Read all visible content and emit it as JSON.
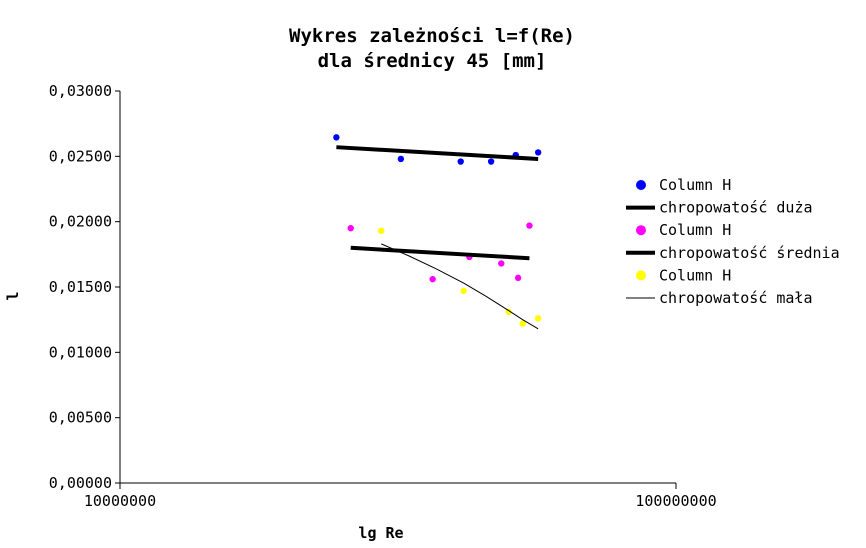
{
  "chart_data": {
    "type": "scatter",
    "title": [
      "Wykres zależności l=f(Re)",
      "dla średnicy 45 [mm]"
    ],
    "xlabel": "lg Re",
    "ylabel": "l",
    "x_scale": "log",
    "xlim": [
      10000000,
      100000000
    ],
    "ylim": [
      0,
      0.03
    ],
    "x_ticks": [
      "10000000",
      "100000000"
    ],
    "y_ticks": [
      "0,00000",
      "0,00500",
      "0,01000",
      "0,01500",
      "0,02000",
      "0,02500",
      "0,03000"
    ],
    "y_tick_values": [
      0,
      0.005,
      0.01,
      0.015,
      0.02,
      0.025,
      0.03
    ],
    "grid": false,
    "legend_position": "right",
    "series": [
      {
        "name": "Column H",
        "kind": "points",
        "color": "#0000ff",
        "marker": "circle",
        "x": [
          24500000,
          32000000,
          41000000,
          46500000,
          51500000,
          56500000
        ],
        "y": [
          0.02645,
          0.0248,
          0.0246,
          0.0246,
          0.0251,
          0.0253
        ]
      },
      {
        "name": "chropowatość duża",
        "kind": "line",
        "color": "#000000",
        "width": "thick",
        "x": [
          24500000,
          56500000
        ],
        "y": [
          0.0257,
          0.0248
        ]
      },
      {
        "name": "Column H",
        "kind": "points",
        "color": "#ff00ff",
        "marker": "circle",
        "x": [
          26000000,
          36500000,
          42500000,
          48500000,
          52000000,
          54500000
        ],
        "y": [
          0.0195,
          0.0156,
          0.0173,
          0.0168,
          0.0157,
          0.0197
        ]
      },
      {
        "name": "chropowatość średnia",
        "kind": "line",
        "color": "#000000",
        "width": "thick",
        "x": [
          26000000,
          54500000
        ],
        "y": [
          0.018,
          0.0172
        ]
      },
      {
        "name": "Column H",
        "kind": "points",
        "color": "#ffff00",
        "marker": "circle",
        "x": [
          29500000,
          41500000,
          50000000,
          53000000,
          56500000
        ],
        "y": [
          0.0193,
          0.0147,
          0.0131,
          0.0122,
          0.0126
        ]
      },
      {
        "name": "chropowatość mała",
        "kind": "line",
        "color": "#000000",
        "width": "thin",
        "x": [
          29500000,
          33000000,
          37000000,
          41500000,
          45500000,
          50000000,
          53000000,
          56500000
        ],
        "y": [
          0.0183,
          0.0174,
          0.0164,
          0.0153,
          0.0143,
          0.0132,
          0.0125,
          0.0118
        ]
      }
    ]
  }
}
